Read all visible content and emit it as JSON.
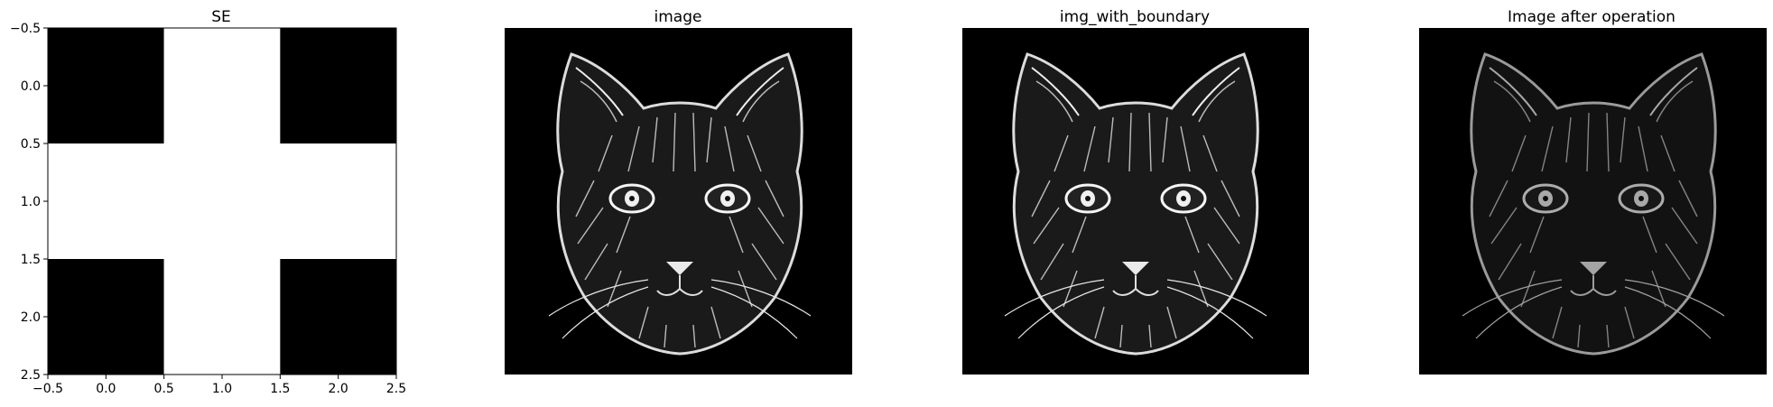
{
  "chart_data": [
    {
      "type": "heatmap",
      "title": "SE",
      "matrix": [
        [
          0,
          1,
          0
        ],
        [
          1,
          1,
          1
        ],
        [
          0,
          1,
          0
        ]
      ],
      "colormap": "gray",
      "xlim": [
        -0.5,
        2.5
      ],
      "ylim": [
        2.5,
        -0.5
      ],
      "xticks": [
        "−0.5",
        "0.0",
        "0.5",
        "1.0",
        "1.5",
        "2.0",
        "2.5"
      ],
      "yticks": [
        "−0.5",
        "0.0",
        "0.5",
        "1.0",
        "1.5",
        "2.0",
        "2.5"
      ]
    },
    {
      "type": "image",
      "title": "image",
      "axis": "off",
      "colormap": "gray",
      "description_id": "cat"
    },
    {
      "type": "image",
      "title": "img_with_boundary",
      "axis": "off",
      "colormap": "gray",
      "description_id": "cat"
    },
    {
      "type": "image",
      "title": "Image after operation",
      "axis": "off",
      "colormap": "gray",
      "description_id": "cat-dim"
    }
  ],
  "colors": {
    "background": "#ffffff",
    "foreground": "#ffffff",
    "dark": "#000000"
  }
}
